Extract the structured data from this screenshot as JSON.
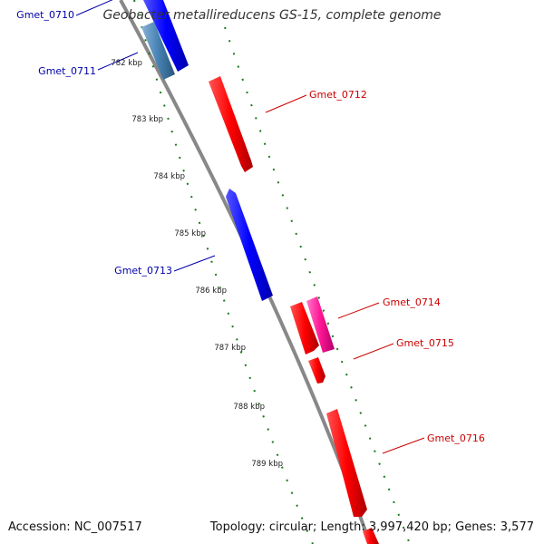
{
  "title": "Geobacter metallireducens GS-15, complete genome",
  "footer": {
    "accession": "Accession: NC_007517",
    "topology": "Topology: circular; Length: 3,997,420 bp; Genes: 3,577"
  },
  "colors": {
    "plus_strand_gene": "#ff0000",
    "minus_strand_gene": "#0000ff",
    "highlight_plus": "#ff1493",
    "highlight_minus": "#4682b4",
    "backbone": "#808080",
    "tick_marks": "#1a7a1a",
    "plus_label": "#cc0000",
    "minus_label": "#0000aa"
  },
  "kbp_labels": [
    "782 kbp",
    "783 kbp",
    "784 kbp",
    "785 kbp",
    "786 kbp",
    "787 kbp",
    "788 kbp",
    "789 kbp"
  ],
  "genes": [
    {
      "name": "Gmet_0710",
      "strand": "-"
    },
    {
      "name": "Gmet_0711",
      "strand": "-"
    },
    {
      "name": "Gmet_0712",
      "strand": "+"
    },
    {
      "name": "Gmet_0713",
      "strand": "-"
    },
    {
      "name": "Gmet_0714",
      "strand": "+"
    },
    {
      "name": "Gmet_0715",
      "strand": "+"
    },
    {
      "name": "Gmet_0716",
      "strand": "+"
    }
  ]
}
